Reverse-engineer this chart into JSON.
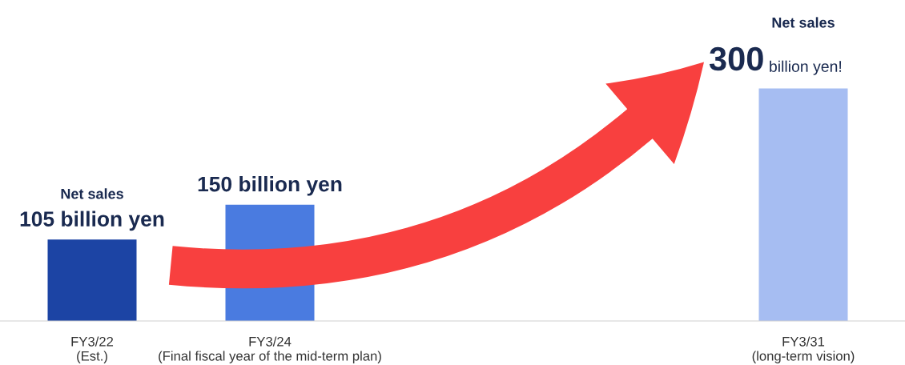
{
  "chart_data": {
    "type": "bar",
    "categories": [
      "FY3/22\n(Est.)",
      "FY3/24\n(Final fiscal year of the mid-term plan)",
      null,
      null,
      "FY3/31\n(long-term vision)"
    ],
    "values": [
      105,
      150,
      null,
      null,
      300
    ],
    "colors": [
      "#1c44a4",
      "#4a7be0",
      "#4a7be0",
      "#4a7be0",
      "#a6bdf2"
    ],
    "value_labels": [
      "Net sales\n105 billion yen",
      "150 billion yen",
      null,
      null,
      "Net sales\n300 billion yen!"
    ],
    "grid": false,
    "legend": false
  }
}
